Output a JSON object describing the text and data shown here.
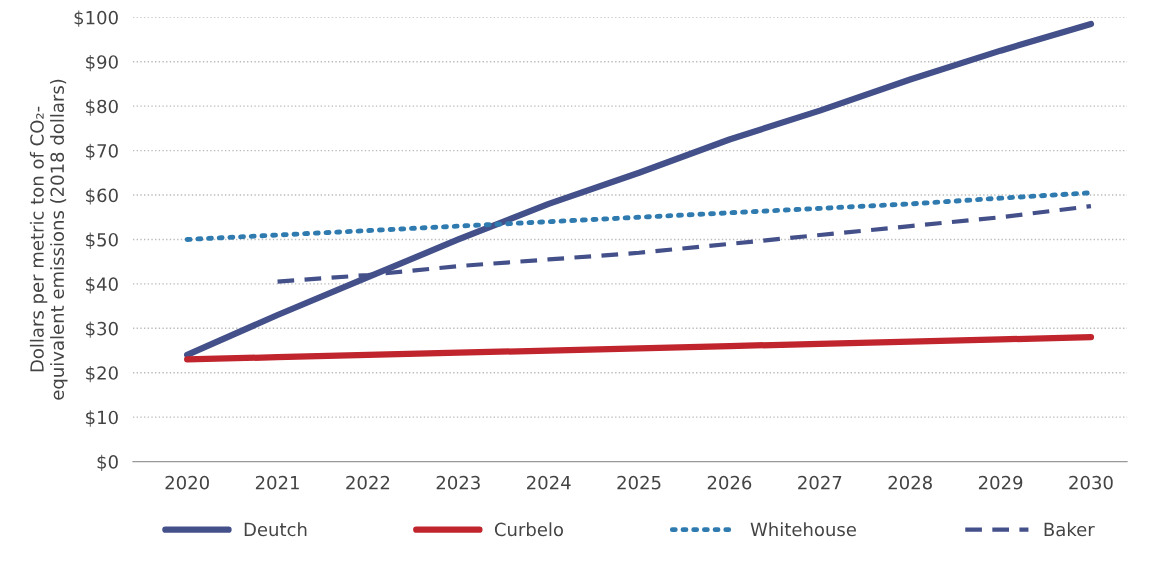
{
  "chart_data": {
    "type": "line",
    "ylabel": "Dollars per metric ton of CO₂-\nequivalent emissions (2018 dollars)",
    "x": [
      2020,
      2021,
      2022,
      2023,
      2024,
      2025,
      2026,
      2027,
      2028,
      2029,
      2030
    ],
    "xlim": [
      2019.4,
      2030.4
    ],
    "xticks": [
      2020,
      2021,
      2022,
      2023,
      2024,
      2025,
      2026,
      2027,
      2028,
      2029,
      2030
    ],
    "ylim": [
      0,
      100
    ],
    "yticks": [
      {
        "value": 0,
        "label": "$0"
      },
      {
        "value": 10,
        "label": "$10"
      },
      {
        "value": 20,
        "label": "$20"
      },
      {
        "value": 30,
        "label": "$30"
      },
      {
        "value": 40,
        "label": "$40"
      },
      {
        "value": 50,
        "label": "$50"
      },
      {
        "value": 60,
        "label": "$60"
      },
      {
        "value": 70,
        "label": "$70"
      },
      {
        "value": 80,
        "label": "$80"
      },
      {
        "value": 90,
        "label": "$90"
      },
      {
        "value": 100,
        "label": "$100"
      }
    ],
    "grid": "y",
    "legend": "bottom",
    "series": [
      {
        "name": "Deutch",
        "color": "#44508a",
        "line_style": "solid",
        "values": [
          24,
          33,
          41.5,
          50,
          58,
          65,
          72.5,
          79,
          86,
          92.5,
          98.5
        ]
      },
      {
        "name": "Curbelo",
        "color": "#c0242c",
        "line_style": "solid",
        "values": [
          23,
          23.5,
          24,
          24.5,
          25,
          25.5,
          26,
          26.5,
          27,
          27.5,
          28
        ]
      },
      {
        "name": "Whitehouse",
        "color": "#2f7bb0",
        "line_style": "dotted",
        "values": [
          50,
          51,
          52,
          53,
          54,
          55,
          56,
          57,
          58,
          59.3,
          60.5
        ]
      },
      {
        "name": "Baker",
        "color": "#44508a",
        "line_style": "dashed",
        "values": [
          null,
          40.5,
          42,
          44,
          45.5,
          47,
          49,
          51,
          53,
          55,
          57.5
        ]
      }
    ]
  }
}
